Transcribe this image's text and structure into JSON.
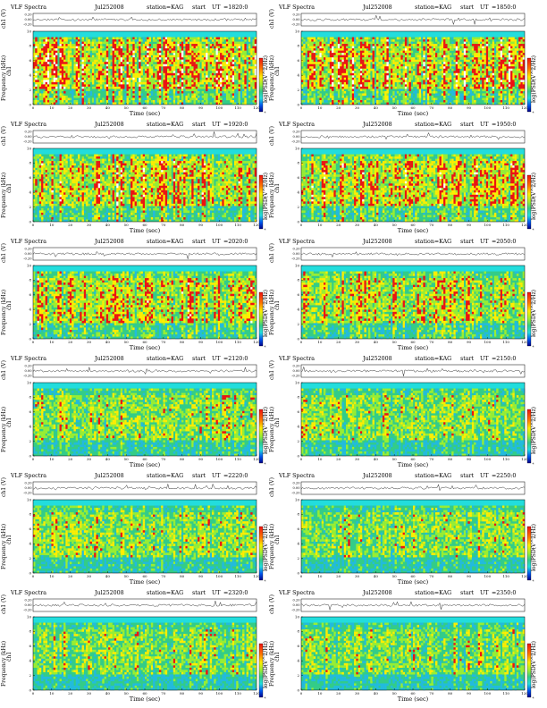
{
  "page": {
    "columns": 2,
    "rows": 6
  },
  "labels": {
    "title": "VLF Spectra",
    "station": "station=KAG",
    "start": "start",
    "ut": "UT",
    "ch_label": "ch1 (V)",
    "freq_label": "Frequency (kHz)",
    "ch_side": "ch1",
    "time_label": "Time (sec)",
    "cb_label": "log(PSD(V^2/Hz)"
  },
  "colors": {
    "background_band": "#22dddd",
    "low": "#33cc88",
    "mid": "#99ee33",
    "high_yellow": "#ffee00",
    "high_red": "#ee1111",
    "peak": "#ffffff",
    "trace": "#333333"
  },
  "chart_data": [
    {
      "type": "heatmap",
      "date": "Jul252008",
      "station": "station=KAG",
      "start_ut": "=1820:0",
      "activity": 0.85
    },
    {
      "type": "heatmap",
      "date": "Jul252008",
      "station": "station=KAG",
      "start_ut": "=1850:0",
      "activity": 0.85
    },
    {
      "type": "heatmap",
      "date": "Jul252008",
      "station": "station=KAG",
      "start_ut": "=1920:0",
      "activity": 0.75
    },
    {
      "type": "heatmap",
      "date": "Jul252008",
      "station": "station=KAG",
      "start_ut": "=1950:0",
      "activity": 0.75
    },
    {
      "type": "heatmap",
      "date": "Jul252008",
      "station": "station=KAG",
      "start_ut": "=2020:0",
      "activity": 0.7
    },
    {
      "type": "heatmap",
      "date": "Jul252008",
      "station": "station=KAG",
      "start_ut": "=2050:0",
      "activity": 0.68
    },
    {
      "type": "heatmap",
      "date": "Jul252008",
      "station": "station=KAG",
      "start_ut": "=2120:0",
      "activity": 0.55
    },
    {
      "type": "heatmap",
      "date": "Jul252008",
      "station": "station=KAG",
      "start_ut": "=2150:0",
      "activity": 0.5
    },
    {
      "type": "heatmap",
      "date": "Jul252008",
      "station": "station=KAG",
      "start_ut": "=2220:0",
      "activity": 0.52
    },
    {
      "type": "heatmap",
      "date": "Jul252008",
      "station": "station=KAG",
      "start_ut": "=2250:0",
      "activity": 0.5
    },
    {
      "type": "heatmap",
      "date": "Jul252008",
      "station": "station=KAG",
      "start_ut": "=2320:0",
      "activity": 0.45
    },
    {
      "type": "heatmap",
      "date": "Jul252008",
      "station": "station=KAG",
      "start_ut": "=2350:0",
      "activity": 0.45
    }
  ],
  "axes": {
    "x_ticks": [
      "0",
      "10",
      "20",
      "30",
      "40",
      "50",
      "60",
      "70",
      "80",
      "90",
      "100",
      "110",
      "120"
    ],
    "x_range": [
      0,
      120
    ],
    "y_ticks": [
      "0",
      "2",
      "4",
      "6",
      "8",
      "10"
    ],
    "y_range": [
      0,
      10
    ],
    "ch_ticks": [
      "0.20",
      "0.00",
      "-0.20"
    ],
    "cb_ticks": [
      "1",
      "0",
      "-1",
      "-2",
      "-3",
      "-4"
    ]
  }
}
